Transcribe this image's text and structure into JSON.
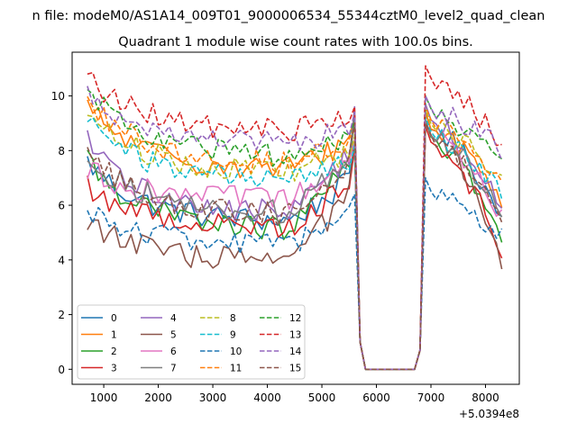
{
  "chart_data": {
    "type": "line",
    "suptitle": "n file: modeM0/AS1A14_009T01_9000006534_55344cztM0_level2_quad_clean",
    "title": "Quadrant 1 module wise count rates with 100.0s bins.",
    "xlabel": "",
    "ylabel": "",
    "x_offset_label": "+5.0394e8",
    "xlim": [
      420,
      8620
    ],
    "ylim": [
      -0.55,
      11.6
    ],
    "xticks": [
      1000,
      2000,
      3000,
      4000,
      5000,
      6000,
      7000,
      8000
    ],
    "yticks": [
      0,
      2,
      4,
      6,
      8,
      10
    ],
    "x_start": 700,
    "x_step": 100,
    "n_points": 77,
    "legend": {
      "location": "lower-left",
      "columns": 4
    },
    "series": [
      {
        "name": "0",
        "color": "#1f77b4",
        "dashed": false,
        "level": 5.4,
        "start": 7.6,
        "peak1": 8.0,
        "peak2": 9.4,
        "end": 5.5
      },
      {
        "name": "1",
        "color": "#ff7f0e",
        "dashed": false,
        "level": 7.3,
        "start": 9.6,
        "peak1": 9.2,
        "peak2": 9.4,
        "end": 6.2
      },
      {
        "name": "2",
        "color": "#2ca02c",
        "dashed": false,
        "level": 5.1,
        "start": 7.7,
        "peak1": 9.3,
        "peak2": 9.1,
        "end": 4.5
      },
      {
        "name": "3",
        "color": "#d62728",
        "dashed": false,
        "level": 5.2,
        "start": 6.7,
        "peak1": 8.1,
        "peak2": 8.9,
        "end": 4.3
      },
      {
        "name": "4",
        "color": "#9467bd",
        "dashed": false,
        "level": 5.7,
        "start": 8.3,
        "peak1": 9.6,
        "peak2": 9.7,
        "end": 5.7
      },
      {
        "name": "5",
        "color": "#8c564b",
        "dashed": false,
        "level": 3.95,
        "start": 5.5,
        "peak1": 8.4,
        "peak2": 9.1,
        "end": 3.85
      },
      {
        "name": "6",
        "color": "#e377c2",
        "dashed": false,
        "level": 6.2,
        "start": 7.3,
        "peak1": 8.4,
        "peak2": 9.1,
        "end": 5.6
      },
      {
        "name": "7",
        "color": "#7f7f7f",
        "dashed": false,
        "level": 5.7,
        "start": 7.9,
        "peak1": 9.4,
        "peak2": 9.1,
        "end": 5.7
      },
      {
        "name": "8",
        "color": "#bcbd22",
        "dashed": true,
        "level": 7.2,
        "start": 9.5,
        "peak1": 8.5,
        "peak2": 9.5,
        "end": 6.8
      },
      {
        "name": "9",
        "color": "#17becf",
        "dashed": true,
        "level": 6.9,
        "start": 9.2,
        "peak1": 8.2,
        "peak2": 9.2,
        "end": 6.3
      },
      {
        "name": "10",
        "color": "#1f77b4",
        "dashed": true,
        "level": 4.55,
        "start": 5.9,
        "peak1": 6.4,
        "peak2": 7.0,
        "end": 4.8
      },
      {
        "name": "11",
        "color": "#ff7f0e",
        "dashed": true,
        "level": 7.5,
        "start": 10.0,
        "peak1": 8.8,
        "peak2": 9.6,
        "end": 6.9
      },
      {
        "name": "12",
        "color": "#2ca02c",
        "dashed": true,
        "level": 7.8,
        "start": 10.2,
        "peak1": 9.1,
        "peak2": 10.0,
        "end": 7.3
      },
      {
        "name": "13",
        "color": "#d62728",
        "dashed": true,
        "level": 8.7,
        "start": 10.7,
        "peak1": 9.6,
        "peak2": 11.1,
        "end": 8.2
      },
      {
        "name": "14",
        "color": "#9467bd",
        "dashed": true,
        "level": 8.2,
        "start": 10.2,
        "peak1": 9.4,
        "peak2": 10.0,
        "end": 8.0
      },
      {
        "name": "15",
        "color": "#8c564b",
        "dashed": true,
        "level": 5.6,
        "start": 7.9,
        "peak1": 9.0,
        "peak2": 9.0,
        "end": 5.3
      }
    ]
  }
}
